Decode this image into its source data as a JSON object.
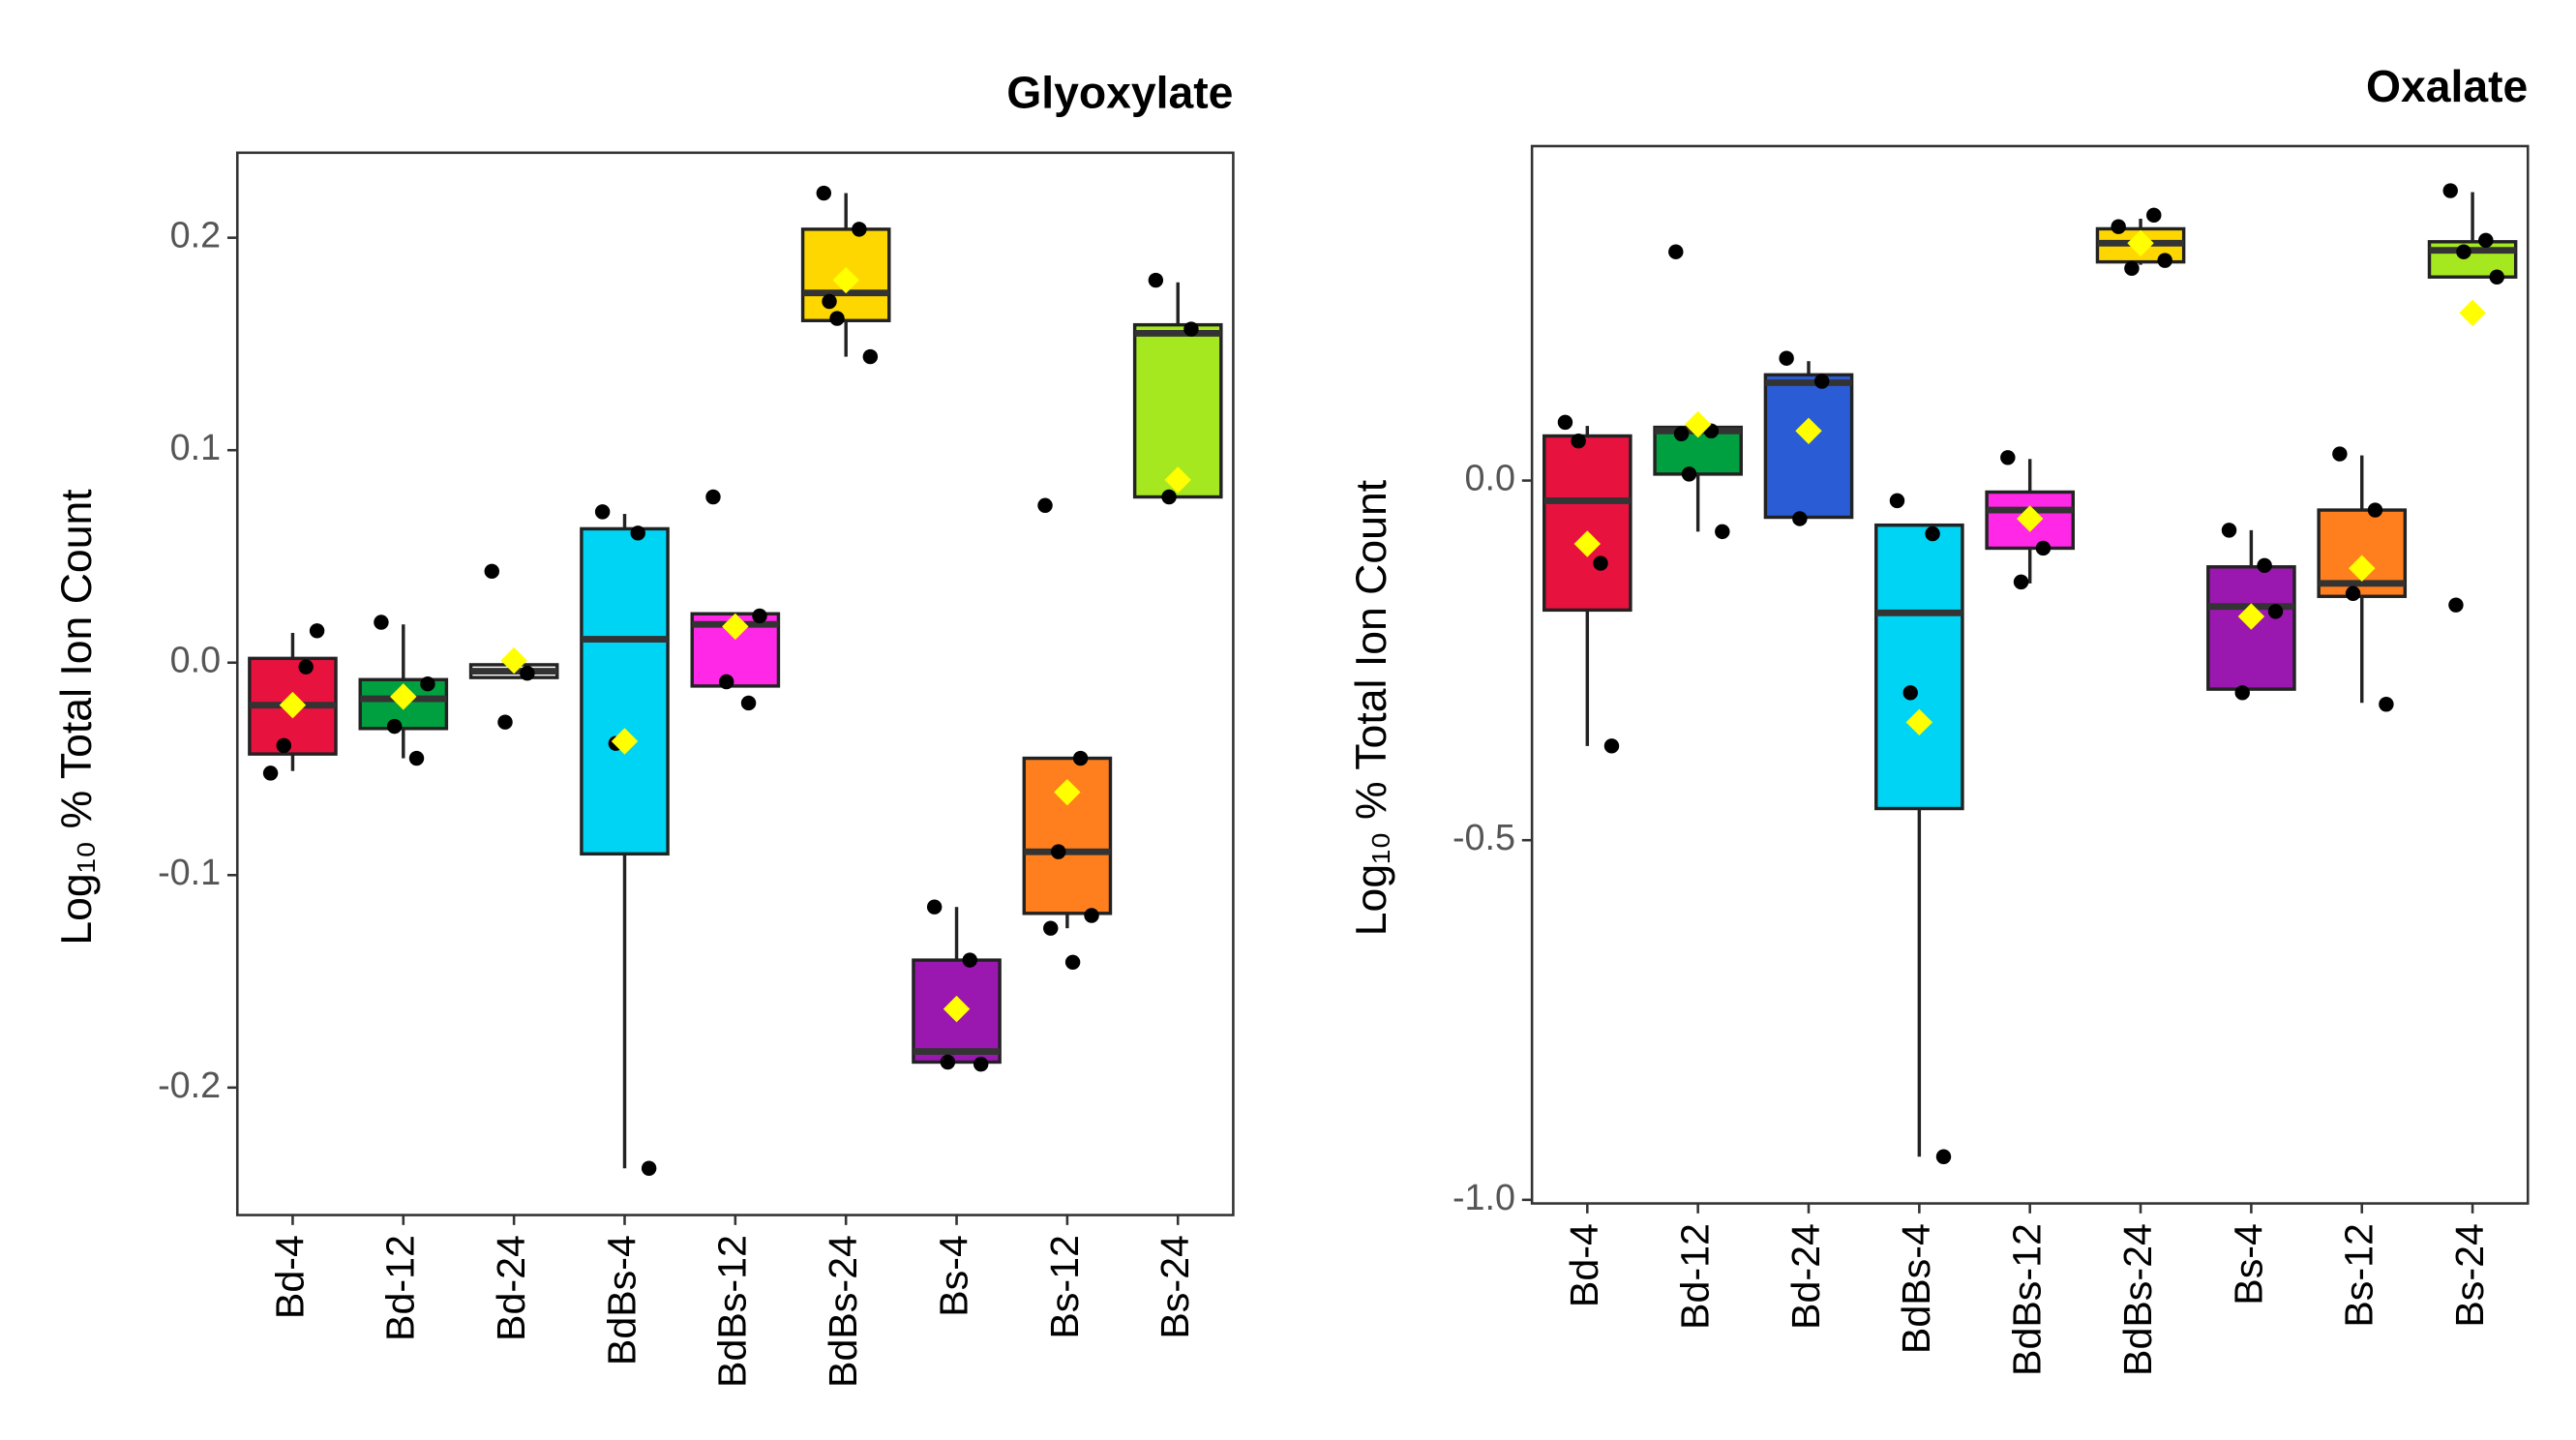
{
  "chart_data": [
    {
      "type": "box",
      "title": "Glyoxylate",
      "y_label": "Log₁₀ % Total Ion Count",
      "categories": [
        "Bd-4",
        "Bd-12",
        "Bd-24",
        "BdBs-4",
        "BdBs-12",
        "BdBs-24",
        "Bs-4",
        "Bs-12",
        "Bs-24"
      ],
      "colors": [
        "#e8123f",
        "#00a040",
        "#ffffff",
        "#00d4f4",
        "#ff28e6",
        "#ffd700",
        "#9a17b0",
        "#ff7f1e",
        "#a6e820"
      ],
      "ylim": [
        -0.26,
        0.24
      ],
      "yticks": [
        -0.2,
        -0.1,
        {
          "value": 0,
          "label": "0.0"
        },
        0.1,
        0.2
      ],
      "boxes": [
        {
          "whisker_low": -0.051,
          "q1": -0.043,
          "median": -0.02,
          "q3": 0.002,
          "whisker_high": 0.014,
          "mean": -0.02,
          "points": [
            -0.052,
            -0.002,
            -0.039,
            0.015
          ]
        },
        {
          "whisker_low": -0.045,
          "q1": -0.031,
          "median": -0.017,
          "q3": -0.008,
          "whisker_high": 0.018,
          "mean": -0.016,
          "points": [
            0.019,
            -0.045,
            -0.03,
            -0.01
          ]
        },
        {
          "whisker_low": -0.007,
          "q1": -0.007,
          "median": -0.004,
          "q3": -0.001,
          "whisker_high": -0.001,
          "mean": 0.001,
          "points": [
            0.043,
            -0.005,
            -0.028
          ]
        },
        {
          "whisker_low": -0.238,
          "q1": -0.09,
          "median": 0.011,
          "q3": 0.063,
          "whisker_high": 0.07,
          "mean": -0.037,
          "points": [
            0.071,
            0.061,
            -0.038,
            -0.238
          ]
        },
        {
          "whisker_low": -0.011,
          "q1": -0.011,
          "median": 0.018,
          "q3": 0.023,
          "whisker_high": 0.023,
          "mean": 0.017,
          "points": [
            0.078,
            -0.019,
            -0.009,
            0.022
          ]
        },
        {
          "whisker_low": 0.144,
          "q1": 0.161,
          "median": 0.174,
          "q3": 0.204,
          "whisker_high": 0.221,
          "mean": 0.18,
          "points": [
            0.221,
            0.204,
            0.162,
            0.144,
            0.17
          ]
        },
        {
          "whisker_low": -0.188,
          "q1": -0.188,
          "median": -0.183,
          "q3": -0.14,
          "whisker_high": -0.115,
          "mean": -0.163,
          "points": [
            -0.115,
            -0.14,
            -0.188,
            -0.189
          ]
        },
        {
          "whisker_low": -0.125,
          "q1": -0.118,
          "median": -0.089,
          "q3": -0.045,
          "whisker_high": -0.045,
          "mean": -0.061,
          "points": [
            0.074,
            -0.045,
            -0.089,
            -0.119,
            -0.125,
            -0.141
          ]
        },
        {
          "whisker_low": 0.078,
          "q1": 0.078,
          "median": 0.155,
          "q3": 0.159,
          "whisker_high": 0.179,
          "mean": 0.086,
          "points": [
            0.18,
            0.157,
            0.078
          ]
        }
      ]
    },
    {
      "type": "box",
      "title": "Oxalate",
      "y_label": "Log₁₀ % Total Ion Count",
      "categories": [
        "Bd-4",
        "Bd-12",
        "Bd-24",
        "BdBs-4",
        "BdBs-12",
        "BdBs-24",
        "Bs-4",
        "Bs-12",
        "Bs-24"
      ],
      "colors": [
        "#e8123f",
        "#00a040",
        "#2a5cd6",
        "#00d4f4",
        "#ff28e6",
        "#ffd700",
        "#9a17b0",
        "#ff7f1e",
        "#a6e820"
      ],
      "ylim": [
        -1.005,
        0.465
      ],
      "yticks": [
        {
          "value": -1,
          "label": "-1.0"
        },
        -0.5,
        {
          "value": 0,
          "label": "0.0"
        }
      ],
      "boxes": [
        {
          "whisker_low": -0.369,
          "q1": -0.18,
          "median": -0.028,
          "q3": 0.062,
          "whisker_high": 0.076,
          "mean": -0.088,
          "points": [
            0.081,
            -0.115,
            0.055,
            -0.369
          ]
        },
        {
          "whisker_low": -0.071,
          "q1": 0.009,
          "median": 0.069,
          "q3": 0.074,
          "whisker_high": 0.074,
          "mean": 0.078,
          "points": [
            0.318,
            0.069,
            0.009,
            -0.071,
            0.065
          ]
        },
        {
          "whisker_low": -0.051,
          "q1": -0.051,
          "median": 0.136,
          "q3": 0.147,
          "whisker_high": 0.166,
          "mean": 0.069,
          "points": [
            0.17,
            0.138,
            -0.053
          ]
        },
        {
          "whisker_low": -0.94,
          "q1": -0.456,
          "median": -0.184,
          "q3": -0.062,
          "whisker_high": -0.062,
          "mean": -0.336,
          "points": [
            -0.028,
            -0.074,
            -0.295,
            -0.94
          ]
        },
        {
          "whisker_low": -0.143,
          "q1": -0.094,
          "median": -0.041,
          "q3": -0.016,
          "whisker_high": 0.03,
          "mean": -0.053,
          "points": [
            0.032,
            -0.094,
            -0.141
          ]
        },
        {
          "whisker_low": 0.3,
          "q1": 0.304,
          "median": 0.33,
          "q3": 0.35,
          "whisker_high": 0.364,
          "mean": 0.33,
          "points": [
            0.353,
            0.369,
            0.295,
            0.306
          ]
        },
        {
          "whisker_low": -0.29,
          "q1": -0.29,
          "median": -0.175,
          "q3": -0.12,
          "whisker_high": -0.069,
          "mean": -0.189,
          "points": [
            -0.069,
            -0.118,
            -0.295,
            -0.182
          ]
        },
        {
          "whisker_low": -0.309,
          "q1": -0.161,
          "median": -0.143,
          "q3": -0.041,
          "whisker_high": 0.035,
          "mean": -0.122,
          "points": [
            0.037,
            -0.041,
            -0.157,
            -0.311
          ]
        },
        {
          "whisker_low": 0.283,
          "q1": 0.283,
          "median": 0.32,
          "q3": 0.332,
          "whisker_high": 0.401,
          "mean": 0.233,
          "points": [
            0.403,
            0.334,
            0.318,
            0.283,
            -0.173
          ]
        }
      ]
    }
  ]
}
